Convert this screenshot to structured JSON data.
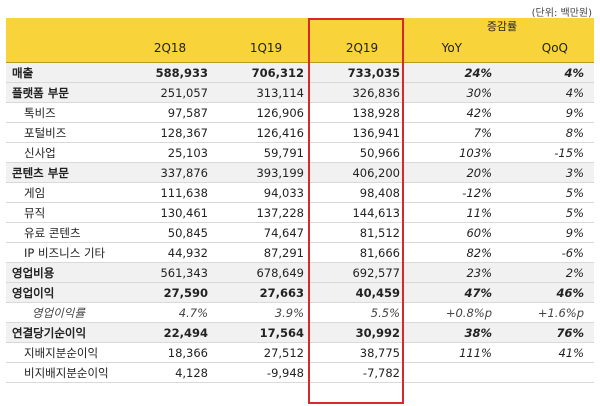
{
  "unit_note": "(단위: 백만원)",
  "header": {
    "col_2q18": "2Q18",
    "col_1q19": "1Q19",
    "col_2q19": "2Q19",
    "change_group": "증감률",
    "yoy": "YoY",
    "qoq": "QoQ"
  },
  "rows": [
    {
      "label": "매출",
      "v2q18": "588,933",
      "v1q19": "706,312",
      "v2q19": "733,035",
      "yoy": "24%",
      "qoq": "4%"
    },
    {
      "label": "플랫폼 부문",
      "v2q18": "251,057",
      "v1q19": "313,114",
      "v2q19": "326,836",
      "yoy": "30%",
      "qoq": "4%"
    },
    {
      "label": "톡비즈",
      "v2q18": "97,587",
      "v1q19": "126,906",
      "v2q19": "138,928",
      "yoy": "42%",
      "qoq": "9%"
    },
    {
      "label": "포털비즈",
      "v2q18": "128,367",
      "v1q19": "126,416",
      "v2q19": "136,941",
      "yoy": "7%",
      "qoq": "8%"
    },
    {
      "label": "신사업",
      "v2q18": "25,103",
      "v1q19": "59,791",
      "v2q19": "50,966",
      "yoy": "103%",
      "qoq": "-15%"
    },
    {
      "label": "콘텐츠 부문",
      "v2q18": "337,876",
      "v1q19": "393,199",
      "v2q19": "406,200",
      "yoy": "20%",
      "qoq": "3%"
    },
    {
      "label": "게임",
      "v2q18": "111,638",
      "v1q19": "94,033",
      "v2q19": "98,408",
      "yoy": "-12%",
      "qoq": "5%"
    },
    {
      "label": "뮤직",
      "v2q18": "130,461",
      "v1q19": "137,228",
      "v2q19": "144,613",
      "yoy": "11%",
      "qoq": "5%"
    },
    {
      "label": "유료 콘텐츠",
      "v2q18": "50,845",
      "v1q19": "74,647",
      "v2q19": "81,512",
      "yoy": "60%",
      "qoq": "9%"
    },
    {
      "label": "IP 비즈니스 기타",
      "v2q18": "44,932",
      "v1q19": "87,291",
      "v2q19": "81,666",
      "yoy": "82%",
      "qoq": "-6%"
    },
    {
      "label": "영업비용",
      "v2q18": "561,343",
      "v1q19": "678,649",
      "v2q19": "692,577",
      "yoy": "23%",
      "qoq": "2%"
    },
    {
      "label": "영업이익",
      "v2q18": "27,590",
      "v1q19": "27,663",
      "v2q19": "40,459",
      "yoy": "47%",
      "qoq": "46%"
    },
    {
      "label": "영업이익률",
      "v2q18": "4.7%",
      "v1q19": "3.9%",
      "v2q19": "5.5%",
      "yoy": "+0.8%p",
      "qoq": "+1.6%p"
    },
    {
      "label": "연결당기순이익",
      "v2q18": "22,494",
      "v1q19": "17,564",
      "v2q19": "30,992",
      "yoy": "38%",
      "qoq": "76%"
    },
    {
      "label": "지배지분순이익",
      "v2q18": "18,366",
      "v1q19": "27,512",
      "v2q19": "38,775",
      "yoy": "111%",
      "qoq": "41%"
    },
    {
      "label": "비지배지분순이익",
      "v2q18": "4,128",
      "v1q19": "-9,948",
      "v2q19": "-7,782",
      "yoy": "",
      "qoq": ""
    }
  ],
  "colors": {
    "header_bg": "#f9d33a",
    "highlight_border": "#d9272e",
    "major_row_bg": "#f1f1f1"
  }
}
